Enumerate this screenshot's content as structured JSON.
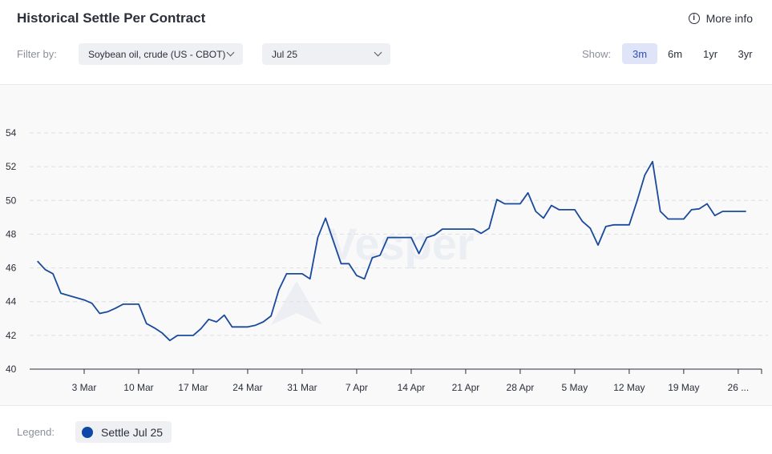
{
  "header": {
    "title": "Historical Settle Per Contract",
    "more_info": "More info",
    "filter_label": "Filter by:",
    "commodity_select": "Soybean oil, crude (US - CBOT)",
    "contract_select": "Jul 25",
    "show_label": "Show:",
    "ranges": [
      "3m",
      "6m",
      "1yr",
      "3yr"
    ],
    "active_range": "3m"
  },
  "watermark": "Vesper",
  "legend": {
    "label": "Legend:",
    "item": "Settle Jul 25"
  },
  "colors": {
    "series": "#1a4a9c",
    "legend_dot": "#0f47a8",
    "active_range_bg": "#dfe4f8",
    "active_range_text": "#2f4fb5"
  },
  "chart_data": {
    "type": "line",
    "title": "Historical Settle Per Contract",
    "xlabel": "",
    "ylabel": "",
    "ylim": [
      40,
      54
    ],
    "yticks": [
      40,
      42,
      44,
      46,
      48,
      50,
      52,
      54
    ],
    "xlim": [
      "2025-02-24",
      "2025-05-29"
    ],
    "x_tick_labels": [
      {
        "date": "2025-03-03",
        "label": "3 Mar"
      },
      {
        "date": "2025-03-10",
        "label": "10 Mar"
      },
      {
        "date": "2025-03-17",
        "label": "17 Mar"
      },
      {
        "date": "2025-03-24",
        "label": "24 Mar"
      },
      {
        "date": "2025-03-31",
        "label": "31 Mar"
      },
      {
        "date": "2025-04-07",
        "label": "7 Apr"
      },
      {
        "date": "2025-04-14",
        "label": "14 Apr"
      },
      {
        "date": "2025-04-21",
        "label": "21 Apr"
      },
      {
        "date": "2025-04-28",
        "label": "28 Apr"
      },
      {
        "date": "2025-05-05",
        "label": "5 May"
      },
      {
        "date": "2025-05-12",
        "label": "12 May"
      },
      {
        "date": "2025-05-19",
        "label": "19 May"
      },
      {
        "date": "2025-05-26",
        "label": "26 ..."
      }
    ],
    "grid": "horizontal dashed",
    "series": [
      {
        "name": "Settle Jul 25",
        "points": [
          [
            "2025-02-25",
            46.4
          ],
          [
            "2025-02-26",
            45.9
          ],
          [
            "2025-02-27",
            45.65
          ],
          [
            "2025-02-28",
            44.5
          ],
          [
            "2025-03-03",
            44.1
          ],
          [
            "2025-03-04",
            43.9
          ],
          [
            "2025-03-05",
            43.3
          ],
          [
            "2025-03-06",
            43.4
          ],
          [
            "2025-03-07",
            43.6
          ],
          [
            "2025-03-08",
            43.85
          ],
          [
            "2025-03-09",
            43.85
          ],
          [
            "2025-03-10",
            43.85
          ],
          [
            "2025-03-11",
            42.7
          ],
          [
            "2025-03-12",
            42.45
          ],
          [
            "2025-03-13",
            42.15
          ],
          [
            "2025-03-14",
            41.7
          ],
          [
            "2025-03-15",
            42.0
          ],
          [
            "2025-03-16",
            42.0
          ],
          [
            "2025-03-17",
            42.0
          ],
          [
            "2025-03-18",
            42.4
          ],
          [
            "2025-03-19",
            42.95
          ],
          [
            "2025-03-20",
            42.8
          ],
          [
            "2025-03-21",
            43.2
          ],
          [
            "2025-03-22",
            42.5
          ],
          [
            "2025-03-23",
            42.5
          ],
          [
            "2025-03-24",
            42.5
          ],
          [
            "2025-03-25",
            42.6
          ],
          [
            "2025-03-26",
            42.8
          ],
          [
            "2025-03-27",
            43.15
          ],
          [
            "2025-03-28",
            44.7
          ],
          [
            "2025-03-29",
            45.65
          ],
          [
            "2025-03-30",
            45.65
          ],
          [
            "2025-03-31",
            45.65
          ],
          [
            "2025-04-01",
            45.35
          ],
          [
            "2025-04-02",
            47.8
          ],
          [
            "2025-04-03",
            48.95
          ],
          [
            "2025-04-04",
            47.6
          ],
          [
            "2025-04-05",
            46.25
          ],
          [
            "2025-04-06",
            46.25
          ],
          [
            "2025-04-07",
            45.55
          ],
          [
            "2025-04-08",
            45.35
          ],
          [
            "2025-04-09",
            46.6
          ],
          [
            "2025-04-10",
            46.75
          ],
          [
            "2025-04-11",
            47.8
          ],
          [
            "2025-04-12",
            47.8
          ],
          [
            "2025-04-13",
            47.8
          ],
          [
            "2025-04-14",
            47.8
          ],
          [
            "2025-04-15",
            46.85
          ],
          [
            "2025-04-16",
            47.8
          ],
          [
            "2025-04-17",
            47.95
          ],
          [
            "2025-04-18",
            48.3
          ],
          [
            "2025-04-19",
            48.3
          ],
          [
            "2025-04-20",
            48.3
          ],
          [
            "2025-04-21",
            48.3
          ],
          [
            "2025-04-22",
            48.3
          ],
          [
            "2025-04-23",
            48.05
          ],
          [
            "2025-04-24",
            48.35
          ],
          [
            "2025-04-25",
            50.05
          ],
          [
            "2025-04-26",
            49.8
          ],
          [
            "2025-04-27",
            49.8
          ],
          [
            "2025-04-28",
            49.8
          ],
          [
            "2025-04-29",
            50.45
          ],
          [
            "2025-04-30",
            49.35
          ],
          [
            "2025-05-01",
            48.95
          ],
          [
            "2025-05-02",
            49.7
          ],
          [
            "2025-05-03",
            49.45
          ],
          [
            "2025-05-04",
            49.45
          ],
          [
            "2025-05-05",
            49.45
          ],
          [
            "2025-05-06",
            48.75
          ],
          [
            "2025-05-07",
            48.35
          ],
          [
            "2025-05-08",
            47.35
          ],
          [
            "2025-05-09",
            48.45
          ],
          [
            "2025-05-10",
            48.55
          ],
          [
            "2025-05-11",
            48.55
          ],
          [
            "2025-05-12",
            48.55
          ],
          [
            "2025-05-13",
            49.95
          ],
          [
            "2025-05-14",
            51.5
          ],
          [
            "2025-05-15",
            52.3
          ],
          [
            "2025-05-16",
            49.35
          ],
          [
            "2025-05-17",
            48.9
          ],
          [
            "2025-05-18",
            48.9
          ],
          [
            "2025-05-19",
            48.9
          ],
          [
            "2025-05-20",
            49.45
          ],
          [
            "2025-05-21",
            49.5
          ],
          [
            "2025-05-22",
            49.8
          ],
          [
            "2025-05-23",
            49.1
          ],
          [
            "2025-05-24",
            49.35
          ],
          [
            "2025-05-25",
            49.35
          ],
          [
            "2025-05-26",
            49.35
          ],
          [
            "2025-05-27",
            49.35
          ]
        ]
      }
    ]
  }
}
